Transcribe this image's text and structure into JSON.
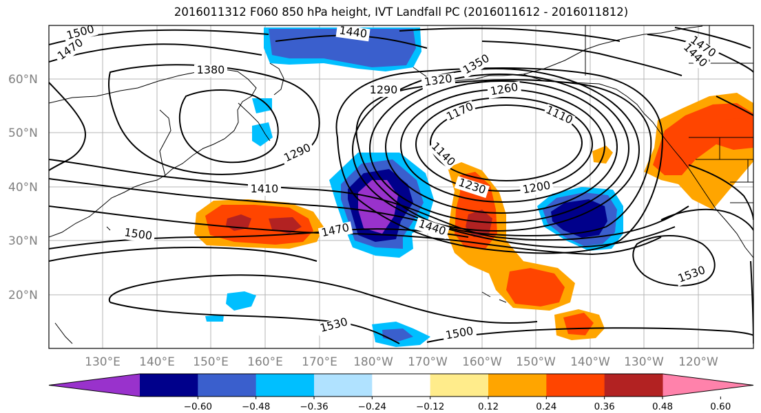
{
  "title": "2016011312 F060 850 hPa height, IVT Landfall PC (2016011612 - 2016011812)",
  "lat_labels": [
    "60°N",
    "50°N",
    "40°N",
    "30°N",
    "20°N"
  ],
  "lon_labels": [
    "130°E",
    "140°E",
    "150°E",
    "160°E",
    "170°E",
    "180°W",
    "170°W",
    "160°W",
    "150°W",
    "140°W",
    "130°W",
    "120°W"
  ],
  "contour_labels": [
    "1500",
    "1470",
    "1440",
    "1380",
    "1350",
    "1320",
    "1290",
    "1260",
    "1170",
    "1110",
    "1140",
    "1290",
    "1410",
    "1230",
    "1200",
    "1470",
    "1440",
    "1500",
    "1530",
    "1530",
    "1500",
    "1470",
    "1440"
  ],
  "colorbar": {
    "ticks": [
      "−0.60",
      "−0.48",
      "−0.36",
      "−0.24",
      "−0.12",
      "0.12",
      "0.24",
      "0.36",
      "0.48",
      "0.60"
    ],
    "colors": [
      "#9932CC",
      "#00008B",
      "#3A5FCD",
      "#00BFFF",
      "#B0E2FF",
      "#FFFFFF",
      "#FFEC8B",
      "#FFA500",
      "#FF4500",
      "#B22222",
      "#FF82AB"
    ]
  }
}
